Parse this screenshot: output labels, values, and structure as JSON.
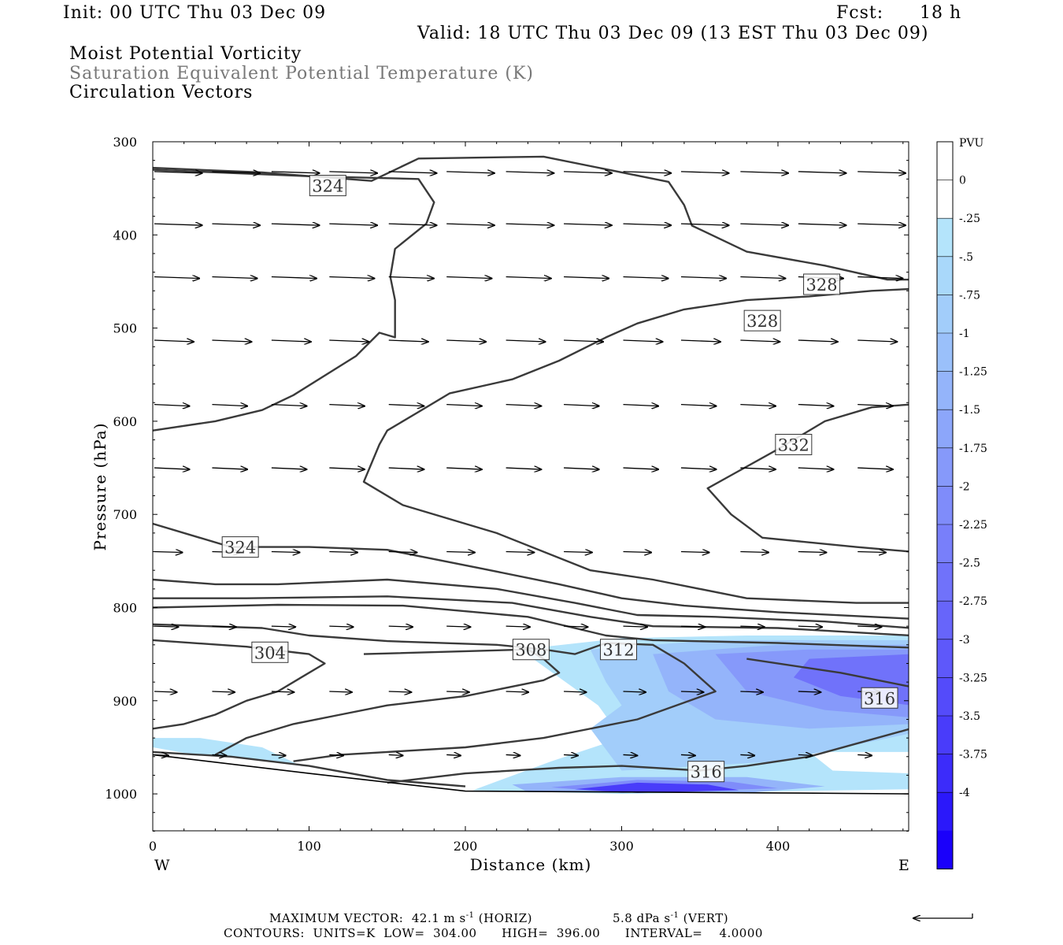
{
  "header": {
    "init": "Init: 00 UTC Thu 03 Dec 09",
    "fcst_label": "Fcst:",
    "fcst_value": "18 h",
    "valid": "Valid: 18 UTC Thu 03 Dec 09 (13 EST Thu 03 Dec 09)",
    "line1": "Moist Potential Vorticity",
    "line2": "Saturation Equivalent Potential Temperature (K)",
    "line3": "Circulation Vectors"
  },
  "chart_data": {
    "type": "heatmap",
    "title": "Moist Potential Vorticity / Saturation Equivalent Potential Temperature (K) / Circulation Vectors",
    "xlabel": "Distance (km)",
    "ylabel": "Pressure (hPa)",
    "xlim": [
      0,
      485
    ],
    "ylim": [
      1040,
      300
    ],
    "x_ticks": [
      0,
      100,
      200,
      300,
      400
    ],
    "y_ticks": [
      300,
      400,
      500,
      600,
      700,
      800,
      900,
      1000
    ],
    "x_end_labels": {
      "left": "W",
      "right": "E"
    },
    "colorbar": {
      "title": "PVU",
      "labels": [
        "0",
        "-.25",
        "-.5",
        "-.75",
        "-1",
        "-1.25",
        "-1.5",
        "-1.75",
        "-2",
        "-2.25",
        "-2.5",
        "-2.75",
        "-3",
        "-3.25",
        "-3.5",
        "-3.75",
        "-4"
      ],
      "colors": [
        "#ffffff",
        "#ffffff",
        "#b4e4fb",
        "#a9d8fa",
        "#a2cdfa",
        "#9ac0fa",
        "#94b4fa",
        "#8ca6fa",
        "#8699fa",
        "#7f8cfa",
        "#787ffa",
        "#7072fa",
        "#6765fa",
        "#5e58fa",
        "#544bfa",
        "#493cfa",
        "#3c2cfa",
        "#2b18fa",
        "#1a00fa"
      ]
    },
    "ground_pressure": [
      [
        0,
        958
      ],
      [
        100,
        978
      ],
      [
        200,
        997
      ],
      [
        300,
        998
      ],
      [
        400,
        999
      ],
      [
        485,
        1000
      ]
    ],
    "shading": [
      {
        "level": "-0.25",
        "color": "#b4e4fb",
        "points": [
          [
            0,
            940
          ],
          [
            30,
            940
          ],
          [
            70,
            950
          ],
          [
            95,
            970
          ],
          [
            60,
            962
          ],
          [
            20,
            956
          ],
          [
            0,
            950
          ]
        ]
      },
      {
        "level": "-0.25",
        "color": "#b4e4fb",
        "points": [
          [
            235,
            845
          ],
          [
            300,
            833
          ],
          [
            380,
            830
          ],
          [
            485,
            830
          ],
          [
            485,
            955
          ],
          [
            420,
            955
          ],
          [
            435,
            975
          ],
          [
            485,
            978
          ],
          [
            485,
            995
          ],
          [
            300,
            1000
          ],
          [
            205,
            996
          ],
          [
            255,
            965
          ],
          [
            300,
            940
          ],
          [
            285,
            905
          ],
          [
            260,
            875
          ]
        ]
      },
      {
        "level": "-0.5",
        "color": "#a2cdfa",
        "points": [
          [
            280,
            845
          ],
          [
            360,
            835
          ],
          [
            485,
            835
          ],
          [
            485,
            935
          ],
          [
            400,
            965
          ],
          [
            300,
            975
          ],
          [
            280,
            930
          ],
          [
            300,
            905
          ],
          [
            290,
            880
          ]
        ]
      },
      {
        "level": "-1",
        "color": "#94b4fa",
        "points": [
          [
            320,
            850
          ],
          [
            400,
            840
          ],
          [
            485,
            840
          ],
          [
            485,
            925
          ],
          [
            420,
            930
          ],
          [
            360,
            920
          ],
          [
            330,
            890
          ]
        ]
      },
      {
        "level": "-1.75",
        "color": "#8699fa",
        "points": [
          [
            360,
            850
          ],
          [
            420,
            845
          ],
          [
            485,
            845
          ],
          [
            485,
            918
          ],
          [
            430,
            910
          ],
          [
            380,
            890
          ]
        ]
      },
      {
        "level": "-2.5",
        "color": "#7072fa",
        "points": [
          [
            420,
            855
          ],
          [
            485,
            850
          ],
          [
            485,
            905
          ],
          [
            440,
            895
          ],
          [
            410,
            875
          ]
        ]
      },
      {
        "level": "-1",
        "color": "#94b4fa",
        "points": [
          [
            230,
            990
          ],
          [
            300,
            982
          ],
          [
            380,
            982
          ],
          [
            430,
            992
          ],
          [
            380,
            999
          ],
          [
            240,
            998
          ]
        ]
      },
      {
        "level": "-2",
        "color": "#7f8cfa",
        "points": [
          [
            255,
            993
          ],
          [
            310,
            985
          ],
          [
            370,
            987
          ],
          [
            400,
            994
          ],
          [
            300,
            999
          ]
        ]
      },
      {
        "level": "-3.5",
        "color": "#493cfa",
        "points": [
          [
            270,
            995
          ],
          [
            310,
            988
          ],
          [
            355,
            990
          ],
          [
            375,
            996
          ],
          [
            310,
            999
          ]
        ]
      }
    ],
    "contours": [
      {
        "points": [
          [
            0,
            328
          ],
          [
            70,
            333
          ],
          [
            140,
            342
          ],
          [
            170,
            318
          ],
          [
            250,
            316
          ],
          [
            330,
            343
          ],
          [
            340,
            368
          ],
          [
            345,
            390
          ],
          [
            380,
            418
          ],
          [
            430,
            433
          ],
          [
            470,
            448
          ],
          [
            485,
            448
          ]
        ]
      },
      {
        "points": [
          [
            0,
            610
          ],
          [
            40,
            600
          ],
          [
            70,
            588
          ],
          [
            90,
            572
          ],
          [
            130,
            530
          ],
          [
            145,
            505
          ],
          [
            155,
            510
          ],
          [
            155,
            470
          ],
          [
            152,
            445
          ],
          [
            155,
            415
          ],
          [
            175,
            388
          ],
          [
            180,
            365
          ],
          [
            170,
            340
          ],
          [
            100,
            337
          ],
          [
            0,
            330
          ]
        ]
      },
      {
        "points": [
          [
            485,
            458
          ],
          [
            460,
            460
          ],
          [
            420,
            466
          ],
          [
            380,
            470
          ],
          [
            340,
            480
          ],
          [
            310,
            495
          ],
          [
            290,
            510
          ],
          [
            260,
            535
          ],
          [
            230,
            555
          ],
          [
            190,
            570
          ],
          [
            170,
            590
          ],
          [
            150,
            610
          ],
          [
            145,
            625
          ],
          [
            135,
            665
          ],
          [
            160,
            690
          ],
          [
            220,
            720
          ],
          [
            280,
            760
          ],
          [
            320,
            770
          ],
          [
            380,
            790
          ],
          [
            450,
            795
          ],
          [
            485,
            795
          ]
        ]
      },
      {
        "points": [
          [
            485,
            582
          ],
          [
            460,
            585
          ],
          [
            430,
            600
          ],
          [
            400,
            630
          ],
          [
            370,
            658
          ],
          [
            355,
            672
          ],
          [
            370,
            700
          ],
          [
            390,
            725
          ],
          [
            450,
            735
          ],
          [
            485,
            740
          ]
        ]
      },
      {
        "points": [
          [
            0,
            710
          ],
          [
            30,
            725
          ],
          [
            50,
            735
          ],
          [
            100,
            735
          ],
          [
            150,
            738
          ],
          [
            210,
            758
          ],
          [
            260,
            775
          ],
          [
            300,
            790
          ],
          [
            340,
            798
          ],
          [
            400,
            805
          ],
          [
            485,
            812
          ]
        ]
      },
      {
        "points": [
          [
            0,
            770
          ],
          [
            40,
            775
          ],
          [
            80,
            775
          ],
          [
            150,
            770
          ],
          [
            220,
            780
          ],
          [
            270,
            795
          ],
          [
            310,
            808
          ],
          [
            360,
            810
          ],
          [
            430,
            815
          ],
          [
            485,
            822
          ]
        ]
      },
      {
        "points": [
          [
            0,
            790
          ],
          [
            60,
            790
          ],
          [
            150,
            788
          ],
          [
            230,
            795
          ],
          [
            280,
            810
          ],
          [
            320,
            820
          ],
          [
            400,
            822
          ],
          [
            485,
            830
          ]
        ]
      },
      {
        "points": [
          [
            0,
            800
          ],
          [
            80,
            797
          ],
          [
            160,
            798
          ],
          [
            240,
            810
          ],
          [
            290,
            830
          ],
          [
            320,
            835
          ],
          [
            400,
            838
          ],
          [
            485,
            843
          ]
        ]
      },
      {
        "points": [
          [
            0,
            818
          ],
          [
            70,
            822
          ],
          [
            100,
            830
          ],
          [
            150,
            836
          ],
          [
            220,
            840
          ],
          [
            250,
            845
          ],
          [
            270,
            850
          ],
          [
            290,
            838
          ],
          [
            320,
            840
          ],
          [
            340,
            860
          ],
          [
            360,
            890
          ],
          [
            310,
            920
          ],
          [
            250,
            940
          ],
          [
            200,
            950
          ],
          [
            150,
            955
          ],
          [
            120,
            958
          ],
          [
            90,
            965
          ]
        ]
      },
      {
        "points": [
          [
            0,
            835
          ],
          [
            60,
            842
          ],
          [
            100,
            850
          ],
          [
            110,
            860
          ],
          [
            95,
            875
          ],
          [
            80,
            890
          ],
          [
            60,
            900
          ],
          [
            40,
            915
          ],
          [
            20,
            925
          ],
          [
            0,
            930
          ]
        ]
      },
      {
        "points": [
          [
            135,
            850
          ],
          [
            240,
            845
          ],
          [
            250,
            855
          ],
          [
            260,
            870
          ],
          [
            250,
            878
          ],
          [
            200,
            895
          ],
          [
            150,
            905
          ],
          [
            120,
            915
          ],
          [
            90,
            925
          ],
          [
            60,
            940
          ],
          [
            40,
            958
          ]
        ]
      },
      {
        "points": [
          [
            0,
            955
          ],
          [
            50,
            960
          ],
          [
            100,
            970
          ],
          [
            150,
            985
          ],
          [
            200,
            992
          ]
        ]
      },
      {
        "points": [
          [
            150,
            988
          ],
          [
            200,
            978
          ],
          [
            260,
            972
          ],
          [
            300,
            970
          ],
          [
            350,
            975
          ],
          [
            380,
            970
          ],
          [
            420,
            960
          ],
          [
            485,
            930
          ]
        ]
      },
      {
        "points": [
          [
            380,
            855
          ],
          [
            440,
            870
          ],
          [
            485,
            885
          ]
        ]
      }
    ],
    "contour_labels": [
      {
        "text": "324",
        "x": 112,
        "p": 347
      },
      {
        "text": "328",
        "x": 428,
        "p": 453
      },
      {
        "text": "328",
        "x": 390,
        "p": 492
      },
      {
        "text": "332",
        "x": 410,
        "p": 625
      },
      {
        "text": "324",
        "x": 56,
        "p": 735
      },
      {
        "text": "304",
        "x": 75,
        "p": 848
      },
      {
        "text": "308",
        "x": 242,
        "p": 845
      },
      {
        "text": "312",
        "x": 298,
        "p": 845
      },
      {
        "text": "316",
        "x": 465,
        "p": 897
      },
      {
        "text": "316",
        "x": 354,
        "p": 976
      }
    ],
    "vectors": [
      {
        "p": 332,
        "x": [
          0,
          37,
          75,
          112,
          150,
          187,
          225,
          262,
          300,
          337,
          375,
          412,
          450
        ],
        "len": 34,
        "tilt": 2
      },
      {
        "p": 388,
        "x": [
          0,
          37,
          75,
          112,
          150,
          187,
          225,
          262,
          300,
          337,
          375,
          412,
          450
        ],
        "len": 34,
        "tilt": 2
      },
      {
        "p": 445,
        "x": [
          0,
          37,
          75,
          112,
          150,
          187,
          225,
          262,
          300,
          337,
          375,
          412,
          450
        ],
        "len": 32,
        "tilt": 2
      },
      {
        "p": 513,
        "x": [
          0,
          37,
          75,
          112,
          150,
          187,
          225,
          262,
          300,
          337,
          375,
          412,
          450
        ],
        "len": 28,
        "tilt": 2
      },
      {
        "p": 582,
        "x": [
          0,
          37,
          75,
          112,
          150,
          187,
          225,
          262,
          300,
          337,
          375,
          412,
          450
        ],
        "len": 25,
        "tilt": 2
      },
      {
        "p": 650,
        "x": [
          0,
          37,
          75,
          112,
          150,
          187,
          225,
          262,
          300,
          337,
          375,
          412,
          450
        ],
        "len": 25,
        "tilt": 2
      },
      {
        "p": 740,
        "x": [
          0,
          37,
          75,
          112,
          150,
          187,
          225,
          262,
          300,
          337,
          375,
          412,
          450
        ],
        "len": 20,
        "tilt": 1
      },
      {
        "p": 820,
        "x": [
          0,
          37,
          75,
          112,
          150,
          187,
          225,
          262,
          300,
          337,
          375,
          412,
          450
        ],
        "len": 17,
        "tilt": 1
      },
      {
        "p": 890,
        "x": [
          0,
          37,
          75,
          112,
          150,
          187,
          225,
          262,
          300,
          337,
          375,
          412,
          450
        ],
        "len": 16,
        "tilt": 1
      },
      {
        "p": 958,
        "x": [
          0,
          37,
          75,
          112,
          150,
          187,
          225,
          262,
          300,
          337,
          375,
          412,
          450
        ],
        "len": 10,
        "tilt": 1
      }
    ]
  },
  "footer": {
    "max_vector_label": "MAXIMUM VECTOR:",
    "max_vector_horiz": "42.1 m s",
    "horiz_exp": "-1",
    "horiz_tag": "(HORIZ)",
    "max_vector_vert": "5.8 dPa s",
    "vert_exp": "-1",
    "vert_tag": "(VERT)",
    "contours": "CONTOURS:  UNITS=K  LOW=  304.00      HIGH=  396.00      INTERVAL=    4.0000"
  }
}
